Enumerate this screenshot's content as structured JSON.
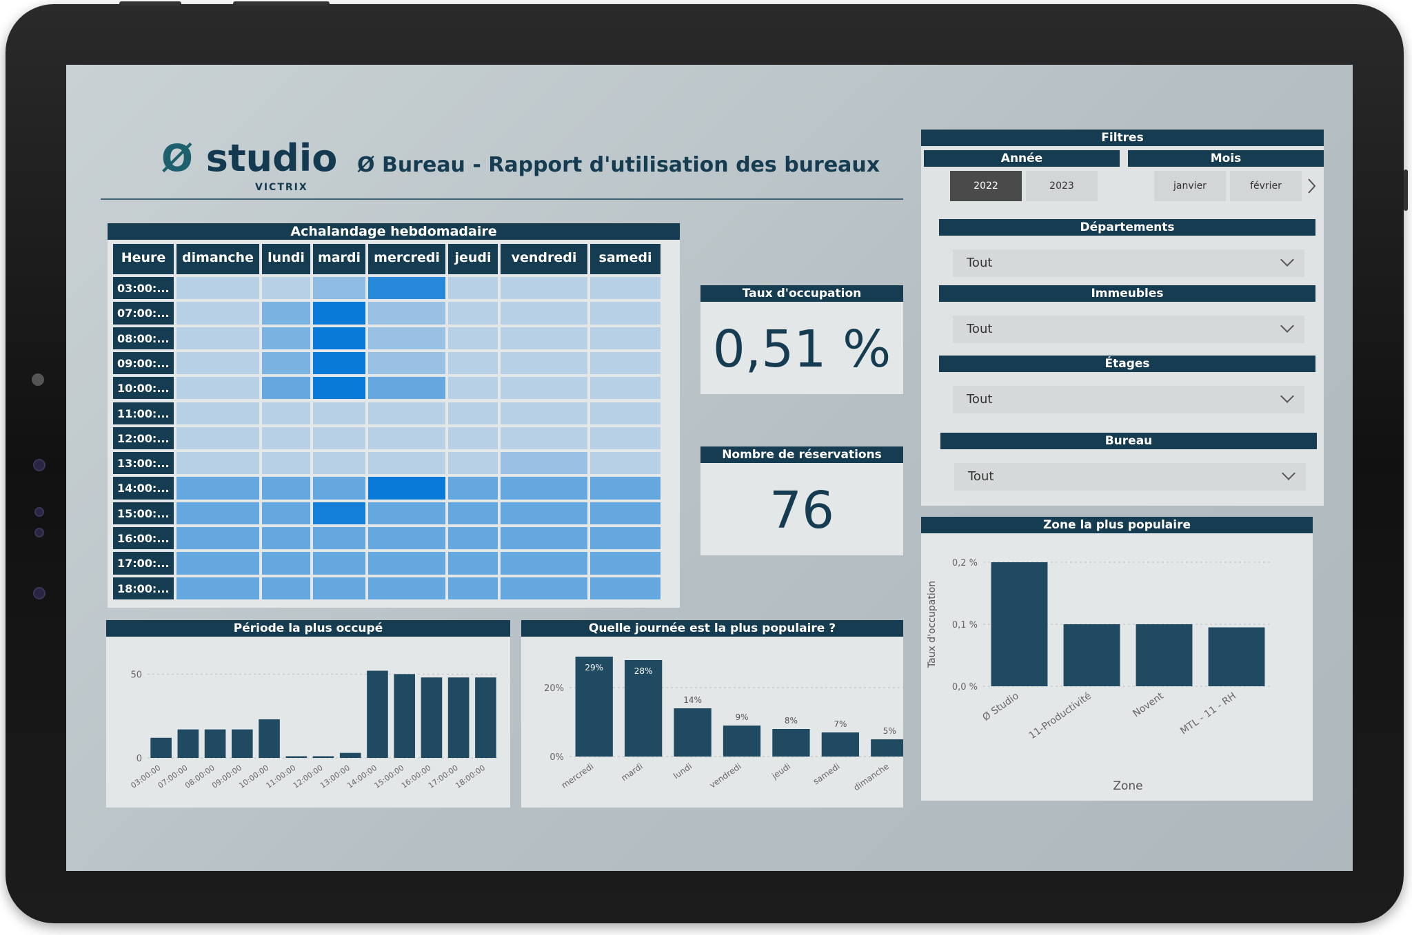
{
  "brand": {
    "name": "studio",
    "mark": "Ø",
    "sub": "VICTRIX"
  },
  "title": "Ø Bureau - Rapport d'utilisation des bureaux",
  "heatmap": {
    "title": "Achalandage hebdomadaire",
    "hour_header": "Heure",
    "days": [
      "dimanche",
      "lundi",
      "mardi",
      "mercredi",
      "jeudi",
      "vendredi",
      "samedi"
    ],
    "hours": [
      "03:00:...",
      "07:00:...",
      "08:00:...",
      "09:00:...",
      "10:00:...",
      "11:00:...",
      "12:00:...",
      "13:00:...",
      "14:00:...",
      "15:00:...",
      "16:00:...",
      "17:00:...",
      "18:00:..."
    ],
    "intensity": [
      [
        0.15,
        0.15,
        0.35,
        0.85,
        0.15,
        0.15,
        0.15
      ],
      [
        0.15,
        0.45,
        1.0,
        0.3,
        0.15,
        0.15,
        0.15
      ],
      [
        0.15,
        0.45,
        1.0,
        0.3,
        0.15,
        0.15,
        0.15
      ],
      [
        0.15,
        0.45,
        1.0,
        0.3,
        0.15,
        0.15,
        0.15
      ],
      [
        0.15,
        0.55,
        1.0,
        0.55,
        0.15,
        0.15,
        0.15
      ],
      [
        0.15,
        0.15,
        0.15,
        0.15,
        0.15,
        0.15,
        0.15
      ],
      [
        0.15,
        0.15,
        0.15,
        0.15,
        0.15,
        0.15,
        0.15
      ],
      [
        0.15,
        0.15,
        0.15,
        0.15,
        0.15,
        0.3,
        0.15
      ],
      [
        0.55,
        0.55,
        0.55,
        1.0,
        0.55,
        0.55,
        0.55
      ],
      [
        0.55,
        0.55,
        0.95,
        0.55,
        0.55,
        0.55,
        0.55
      ],
      [
        0.55,
        0.55,
        0.55,
        0.55,
        0.55,
        0.55,
        0.55
      ],
      [
        0.55,
        0.55,
        0.55,
        0.55,
        0.55,
        0.55,
        0.55
      ],
      [
        0.55,
        0.55,
        0.55,
        0.55,
        0.55,
        0.55,
        0.55
      ]
    ]
  },
  "kpis": {
    "occupancy": {
      "label": "Taux d'occupation",
      "value": "0,51 %"
    },
    "reservations": {
      "label": "Nombre de réservations",
      "value": "76"
    }
  },
  "filters": {
    "title": "Filtres",
    "year": {
      "label": "Année",
      "options": [
        "2022",
        "2023"
      ],
      "selected": "2022"
    },
    "month": {
      "label": "Mois",
      "options": [
        "janvier",
        "février"
      ]
    },
    "departments": {
      "label": "Départements",
      "value": "Tout"
    },
    "buildings": {
      "label": "Immeubles",
      "value": "Tout"
    },
    "floors": {
      "label": "Étages",
      "value": "Tout"
    },
    "office": {
      "label": "Bureau",
      "value": "Tout"
    }
  },
  "colors": {
    "navy": "#163c52",
    "bar": "#1f4a62",
    "heat_max": "#0a7ad8",
    "heat_min": "#d5dfe8"
  },
  "chart_data": [
    {
      "type": "bar",
      "title": "Période la plus occupé",
      "categories": [
        "03:00:00",
        "07:00:00",
        "08:00:00",
        "09:00:00",
        "10:00:00",
        "11:00:00",
        "12:00:00",
        "13:00:00",
        "14:00:00",
        "15:00:00",
        "16:00:00",
        "17:00:00",
        "18:00:00"
      ],
      "values": [
        12,
        17,
        17,
        17,
        23,
        1,
        1,
        3,
        52,
        50,
        48,
        48,
        48
      ],
      "ylim": [
        0,
        60
      ],
      "yticks": [
        "0",
        "50"
      ]
    },
    {
      "type": "bar",
      "title": "Quelle journée est la plus populaire ?",
      "categories": [
        "mercredi",
        "mardi",
        "lundi",
        "vendredi",
        "jeudi",
        "samedi",
        "dimanche"
      ],
      "values": [
        29,
        28,
        14,
        9,
        8,
        7,
        5
      ],
      "labels": [
        "29%",
        "28%",
        "14%",
        "9%",
        "8%",
        "7%",
        "5%"
      ],
      "ylim": [
        0,
        30
      ],
      "yticks": [
        "0%",
        "20%"
      ]
    },
    {
      "type": "bar",
      "title": "Zone la plus populaire",
      "xlabel": "Zone",
      "ylabel": "Taux d'occupation",
      "categories": [
        "Ø Studio",
        "11-Productivité",
        "Novent",
        "MTL - 11 - RH"
      ],
      "values": [
        0.2,
        0.1,
        0.1,
        0.095
      ],
      "ylim": [
        0,
        0.2
      ],
      "yticks": [
        "0,0 %",
        "0,1 %",
        "0,2 %"
      ]
    }
  ]
}
